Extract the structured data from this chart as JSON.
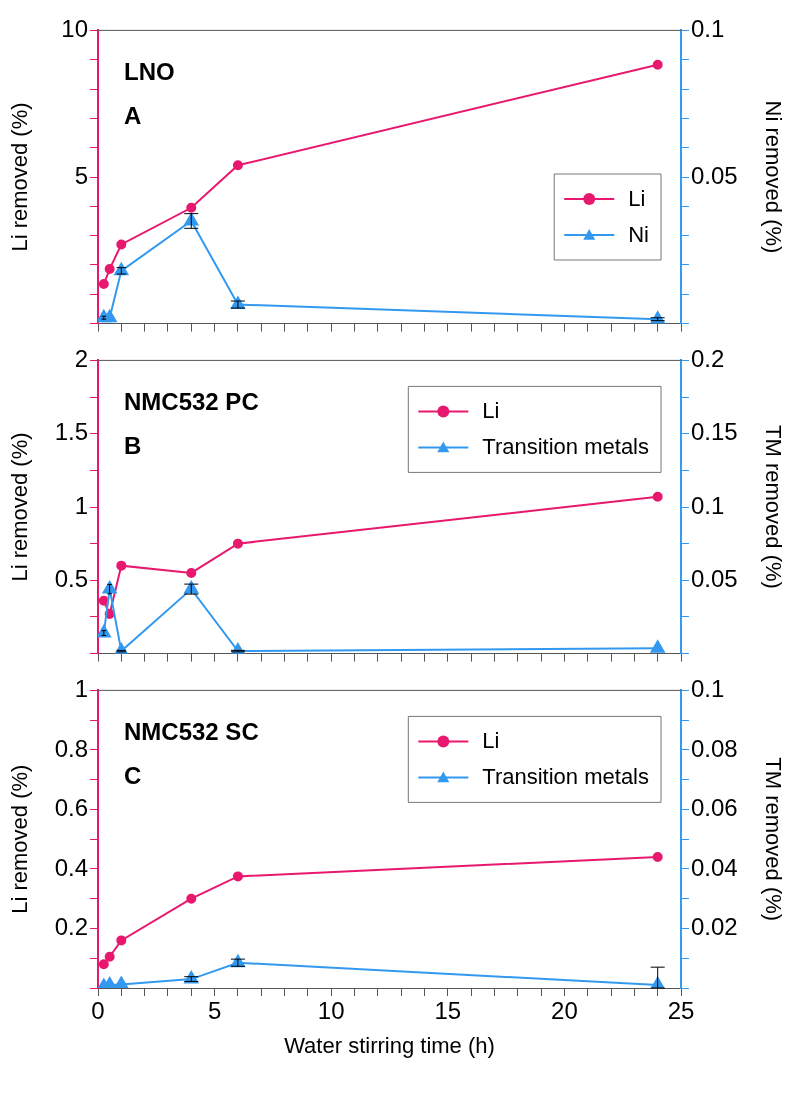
{
  "chart_data": [
    {
      "type": "line",
      "title": "LNO",
      "annotations": [
        "A"
      ],
      "ylabel": "Li removed (%)",
      "y2label": "Ni removed (%)",
      "x": [
        0.25,
        0.5,
        1,
        4,
        6,
        24
      ],
      "xlim": [
        0,
        25
      ],
      "xticks": [
        0,
        {
          "value": 1,
          "label": null
        },
        {
          "value": 2,
          "label": null
        },
        {
          "value": 3,
          "label": null
        },
        {
          "value": 4,
          "label": null
        },
        5,
        {
          "value": 6,
          "label": null
        },
        {
          "value": 7,
          "label": null
        },
        {
          "value": 8,
          "label": null
        },
        {
          "value": 9,
          "label": null
        },
        10,
        {
          "value": 11,
          "label": null
        },
        {
          "value": 12,
          "label": null
        },
        {
          "value": 13,
          "label": null
        },
        {
          "value": 14,
          "label": null
        },
        15,
        {
          "value": 16,
          "label": null
        },
        {
          "value": 17,
          "label": null
        },
        {
          "value": 18,
          "label": null
        },
        {
          "value": 19,
          "label": null
        },
        20,
        {
          "value": 21,
          "label": null
        },
        {
          "value": 22,
          "label": null
        },
        {
          "value": 23,
          "label": null
        },
        {
          "value": 24,
          "label": null
        },
        25
      ],
      "ylim": [
        0,
        10
      ],
      "yticks": [
        {
          "value": 0,
          "label": null
        },
        {
          "value": 1,
          "label": null
        },
        {
          "value": 2,
          "label": null
        },
        {
          "value": 3,
          "label": null
        },
        {
          "value": 4,
          "label": null
        },
        5,
        {
          "value": 6,
          "label": null
        },
        {
          "value": 7,
          "label": null
        },
        {
          "value": 8,
          "label": null
        },
        {
          "value": 9,
          "label": null
        },
        10
      ],
      "y2lim": [
        0,
        0.1
      ],
      "y2ticks": [
        {
          "value": 0,
          "label": null
        },
        {
          "value": 0.01,
          "label": null
        },
        {
          "value": 0.02,
          "label": null
        },
        {
          "value": 0.03,
          "label": null
        },
        {
          "value": 0.04,
          "label": null
        },
        0.05,
        {
          "value": 0.06,
          "label": null
        },
        {
          "value": 0.07,
          "label": null
        },
        {
          "value": 0.08,
          "label": null
        },
        {
          "value": 0.09,
          "label": null
        },
        0.1
      ],
      "series": [
        {
          "name": "Li",
          "color": "#e8186e",
          "marker": "circle",
          "values": [
            1.35,
            1.86,
            2.7,
            3.95,
            5.4,
            8.83
          ]
        },
        {
          "name": "Ni",
          "color": "#3399f0",
          "marker": "triangle",
          "axis": "y2",
          "values": [
            0.002,
            0.002,
            0.018,
            0.035,
            0.0065,
            0.0015
          ],
          "errors": [
            0.0005,
            null,
            0.0011,
            0.0025,
            0.0012,
            0.0005
          ]
        }
      ],
      "legend": "right",
      "tick_labels": "y"
    },
    {
      "type": "line",
      "title": "NMC532 PC",
      "annotations": [
        "B"
      ],
      "ylabel": "Li removed (%)",
      "y2label": "TM removed (%)",
      "x": [
        0.25,
        0.5,
        1,
        4,
        6,
        24
      ],
      "xlim": [
        0,
        25
      ],
      "xticks": [
        0,
        {
          "value": 1,
          "label": null
        },
        {
          "value": 2,
          "label": null
        },
        {
          "value": 3,
          "label": null
        },
        {
          "value": 4,
          "label": null
        },
        5,
        {
          "value": 6,
          "label": null
        },
        {
          "value": 7,
          "label": null
        },
        {
          "value": 8,
          "label": null
        },
        {
          "value": 9,
          "label": null
        },
        10,
        {
          "value": 11,
          "label": null
        },
        {
          "value": 12,
          "label": null
        },
        {
          "value": 13,
          "label": null
        },
        {
          "value": 14,
          "label": null
        },
        15,
        {
          "value": 16,
          "label": null
        },
        {
          "value": 17,
          "label": null
        },
        {
          "value": 18,
          "label": null
        },
        {
          "value": 19,
          "label": null
        },
        20,
        {
          "value": 21,
          "label": null
        },
        {
          "value": 22,
          "label": null
        },
        {
          "value": 23,
          "label": null
        },
        {
          "value": 24,
          "label": null
        },
        25
      ],
      "ylim": [
        0,
        2
      ],
      "yticks": [
        {
          "value": 0,
          "label": null
        },
        {
          "value": 0.25,
          "label": null
        },
        0.5,
        {
          "value": 0.75,
          "label": null
        },
        1,
        {
          "value": 1.25,
          "label": null
        },
        1.5,
        {
          "value": 1.75,
          "label": null
        },
        2
      ],
      "y2lim": [
        0,
        0.2
      ],
      "y2ticks": [
        {
          "value": 0,
          "label": null
        },
        {
          "value": 0.025,
          "label": null
        },
        0.05,
        {
          "value": 0.075,
          "label": null
        },
        0.1,
        {
          "value": 0.125,
          "label": null
        },
        0.15,
        {
          "value": 0.175,
          "label": null
        },
        0.2
      ],
      "series": [
        {
          "name": "Li",
          "color": "#e8186e",
          "marker": "circle",
          "values": [
            0.36,
            0.27,
            0.6,
            0.55,
            0.75,
            1.07
          ]
        },
        {
          "name": "Transition metals",
          "color": "#3399f0",
          "marker": "triangle",
          "axis": "y2",
          "values": [
            0.014,
            0.044,
            0.0017,
            0.044,
            0.0017,
            0.0037
          ],
          "errors": [
            0.0017,
            0.0032,
            0.0005,
            0.0034,
            0.0005,
            null
          ]
        }
      ],
      "legend": "top right",
      "tick_labels": "y"
    },
    {
      "type": "line",
      "title": "NMC532 SC",
      "annotations": [
        "C"
      ],
      "xlabel": "Water stirring time (h)",
      "ylabel": "Li removed (%)",
      "y2label": "TM removed (%)",
      "x": [
        0.25,
        0.5,
        1,
        4,
        6,
        24
      ],
      "xlim": [
        0,
        25
      ],
      "xticks": [
        0,
        {
          "value": 1,
          "label": null
        },
        {
          "value": 2,
          "label": null
        },
        {
          "value": 3,
          "label": null
        },
        {
          "value": 4,
          "label": null
        },
        5,
        {
          "value": 6,
          "label": null
        },
        {
          "value": 7,
          "label": null
        },
        {
          "value": 8,
          "label": null
        },
        {
          "value": 9,
          "label": null
        },
        10,
        {
          "value": 11,
          "label": null
        },
        {
          "value": 12,
          "label": null
        },
        {
          "value": 13,
          "label": null
        },
        {
          "value": 14,
          "label": null
        },
        15,
        {
          "value": 16,
          "label": null
        },
        {
          "value": 17,
          "label": null
        },
        {
          "value": 18,
          "label": null
        },
        {
          "value": 19,
          "label": null
        },
        20,
        {
          "value": 21,
          "label": null
        },
        {
          "value": 22,
          "label": null
        },
        {
          "value": 23,
          "label": null
        },
        {
          "value": 24,
          "label": null
        },
        25
      ],
      "ylim": [
        0,
        1
      ],
      "yticks": [
        {
          "value": 0,
          "label": null
        },
        {
          "value": 0.1,
          "label": null
        },
        0.2,
        {
          "value": 0.3,
          "label": null
        },
        0.4,
        {
          "value": 0.5,
          "label": null
        },
        0.6,
        {
          "value": 0.7,
          "label": null
        },
        0.8,
        {
          "value": 0.9,
          "label": null
        },
        1
      ],
      "y2lim": [
        0,
        0.1
      ],
      "y2ticks": [
        {
          "value": 0,
          "label": null
        },
        {
          "value": 0.01,
          "label": null
        },
        0.02,
        {
          "value": 0.03,
          "label": null
        },
        0.04,
        {
          "value": 0.05,
          "label": null
        },
        0.06,
        {
          "value": 0.07,
          "label": null
        },
        0.08,
        {
          "value": 0.09,
          "label": null
        },
        0.1
      ],
      "series": [
        {
          "name": "Li",
          "color": "#e8186e",
          "marker": "circle",
          "values": [
            0.08,
            0.105,
            0.16,
            0.3,
            0.375,
            0.44
          ]
        },
        {
          "name": "Transition metals",
          "color": "#3399f0",
          "marker": "triangle",
          "axis": "y2",
          "values": [
            0.0005,
            0.001,
            0.0012,
            0.003,
            0.0085,
            0.001
          ],
          "errors": [
            null,
            null,
            null,
            0.0008,
            0.0012,
            [
              0,
              0.007
            ]
          ]
        }
      ],
      "legend": "top right"
    }
  ]
}
